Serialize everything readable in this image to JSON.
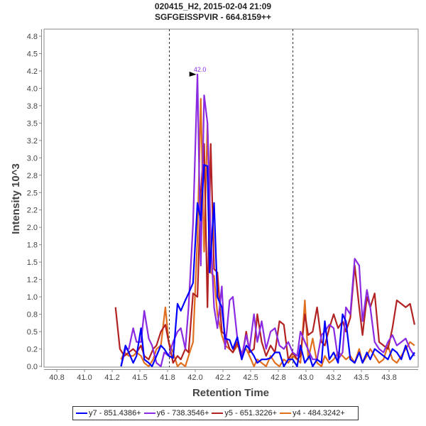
{
  "header": {
    "title_line1": "020415_H2, 2015-02-04 21:09",
    "title_line2": "SGFGEISSPVIR - 664.8159++"
  },
  "chart_data": {
    "type": "line",
    "title": "020415_H2, 2015-02-04 21:09",
    "subtitle": "SGFGEISSPVIR - 664.8159++",
    "xlabel": "Retention Time",
    "ylabel": "Intensity 10^3",
    "xlim": [
      40.7,
      44.0
    ],
    "ylim": [
      0,
      4.85
    ],
    "x_ticks": [
      40.75,
      41.0,
      41.25,
      41.5,
      41.75,
      42.0,
      42.25,
      42.5,
      42.75,
      43.0,
      43.25,
      43.5,
      43.75
    ],
    "x_tick_labels": [
      "40.8",
      "41.0",
      "41.2",
      "41.5",
      "41.8",
      "42.0",
      "42.2",
      "42.5",
      "42.8",
      "43.0",
      "43.2",
      "43.5",
      "43.8"
    ],
    "y_ticks": [
      0,
      0.25,
      0.5,
      0.75,
      1.0,
      1.25,
      1.5,
      1.75,
      2.0,
      2.25,
      2.5,
      2.75,
      3.0,
      3.25,
      3.5,
      3.75,
      4.0,
      4.25,
      4.5,
      4.75
    ],
    "y_tick_labels": [
      "0.0",
      "0.2",
      "0.5",
      "0.8",
      "1.0",
      "1.2",
      "1.5",
      "1.8",
      "2.0",
      "2.2",
      "2.5",
      "2.8",
      "3.0",
      "3.2",
      "3.5",
      "3.8",
      "4.0",
      "4.2",
      "4.5",
      "4.8"
    ],
    "grid": false,
    "legend_position": "bottom",
    "integration_bounds": [
      41.76,
      42.88
    ],
    "peak_annotation": {
      "label": "42.0",
      "x": 42.03,
      "y": 4.2,
      "color": "#8a2be2"
    },
    "series": [
      {
        "name": "y7 - 851.4386+",
        "color": "#0000ff",
        "points": [
          [
            41.33,
            0.0
          ],
          [
            41.37,
            0.3
          ],
          [
            41.4,
            0.2
          ],
          [
            41.44,
            0.05
          ],
          [
            41.47,
            0.15
          ],
          [
            41.51,
            0.55
          ],
          [
            41.54,
            0.1
          ],
          [
            41.58,
            0.05
          ],
          [
            41.61,
            0.0
          ],
          [
            41.65,
            0.15
          ],
          [
            41.69,
            0.3
          ],
          [
            41.72,
            0.25
          ],
          [
            41.76,
            0.15
          ],
          [
            41.8,
            0.12
          ],
          [
            41.84,
            0.9
          ],
          [
            41.87,
            0.8
          ],
          [
            41.91,
            0.95
          ],
          [
            41.94,
            1.05
          ],
          [
            41.98,
            1.2
          ],
          [
            42.02,
            2.35
          ],
          [
            42.05,
            2.1
          ],
          [
            42.08,
            2.9
          ],
          [
            42.11,
            2.88
          ],
          [
            42.13,
            1.35
          ],
          [
            42.17,
            2.35
          ],
          [
            42.2,
            1.0
          ],
          [
            42.24,
            0.85
          ],
          [
            42.27,
            0.4
          ],
          [
            42.31,
            0.38
          ],
          [
            42.34,
            0.25
          ],
          [
            42.38,
            0.42
          ],
          [
            42.42,
            0.1
          ],
          [
            42.46,
            0.3
          ],
          [
            42.49,
            0.25
          ],
          [
            42.53,
            0.15
          ],
          [
            42.56,
            0.05
          ],
          [
            42.6,
            0.1
          ],
          [
            42.64,
            0.1
          ],
          [
            42.68,
            0.12
          ],
          [
            42.72,
            0.2
          ],
          [
            42.76,
            0.2
          ],
          [
            42.8,
            0.0
          ],
          [
            42.84,
            0.1
          ],
          [
            42.88,
            0.1
          ],
          [
            42.92,
            0.0
          ],
          [
            42.95,
            0.3
          ],
          [
            42.99,
            0.05
          ],
          [
            43.03,
            0.15
          ],
          [
            43.06,
            0.0
          ],
          [
            43.1,
            0.1
          ],
          [
            43.14,
            0.05
          ],
          [
            43.17,
            0.65
          ],
          [
            43.21,
            0.1
          ],
          [
            43.25,
            0.2
          ],
          [
            43.29,
            0.05
          ],
          [
            43.33,
            0.75
          ],
          [
            43.36,
            0.65
          ],
          [
            43.4,
            0.1
          ],
          [
            43.44,
            0.05
          ],
          [
            43.48,
            0.2
          ],
          [
            43.51,
            0.05
          ],
          [
            43.55,
            0.2
          ],
          [
            43.58,
            0.1
          ],
          [
            43.62,
            0.25
          ],
          [
            43.66,
            0.2
          ],
          [
            43.7,
            0.15
          ],
          [
            43.74,
            0.1
          ],
          [
            43.78,
            0.25
          ],
          [
            43.82,
            0.2
          ],
          [
            43.86,
            0.1
          ],
          [
            43.9,
            0.3
          ],
          [
            43.94,
            0.1
          ],
          [
            43.98,
            0.2
          ]
        ]
      },
      {
        "name": "y6 - 738.3546+",
        "color": "#8a2be2",
        "points": [
          [
            41.33,
            0.0
          ],
          [
            41.37,
            0.25
          ],
          [
            41.4,
            0.25
          ],
          [
            41.44,
            0.55
          ],
          [
            41.47,
            0.35
          ],
          [
            41.51,
            0.35
          ],
          [
            41.54,
            0.8
          ],
          [
            41.58,
            0.4
          ],
          [
            41.61,
            0.3
          ],
          [
            41.65,
            0.05
          ],
          [
            41.69,
            0.0
          ],
          [
            41.72,
            0.2
          ],
          [
            41.76,
            0.15
          ],
          [
            41.8,
            0.35
          ],
          [
            41.84,
            0.5
          ],
          [
            41.87,
            0.55
          ],
          [
            41.91,
            0.25
          ],
          [
            41.94,
            0.85
          ],
          [
            41.98,
            2.05
          ],
          [
            42.02,
            4.2
          ],
          [
            42.05,
            1.45
          ],
          [
            42.08,
            3.9
          ],
          [
            42.11,
            3.5
          ],
          [
            42.14,
            1.9
          ],
          [
            42.17,
            0.85
          ],
          [
            42.2,
            0.55
          ],
          [
            42.24,
            1.15
          ],
          [
            42.27,
            0.25
          ],
          [
            42.31,
            0.95
          ],
          [
            42.34,
            1.0
          ],
          [
            42.38,
            0.4
          ],
          [
            42.42,
            0.15
          ],
          [
            42.46,
            0.45
          ],
          [
            42.49,
            0.25
          ],
          [
            42.53,
            0.75
          ],
          [
            42.56,
            0.35
          ],
          [
            42.6,
            0.65
          ],
          [
            42.64,
            0.25
          ],
          [
            42.68,
            0.5
          ],
          [
            42.72,
            0.55
          ],
          [
            42.76,
            0.3
          ],
          [
            42.8,
            0.25
          ],
          [
            42.84,
            0.35
          ],
          [
            42.88,
            0.2
          ],
          [
            42.92,
            0.15
          ],
          [
            42.95,
            0.5
          ],
          [
            42.99,
            0.35
          ],
          [
            43.03,
            0.2
          ],
          [
            43.06,
            0.1
          ],
          [
            43.1,
            0.1
          ],
          [
            43.14,
            0.45
          ],
          [
            43.17,
            0.5
          ],
          [
            43.21,
            0.6
          ],
          [
            43.25,
            0.55
          ],
          [
            43.29,
            0.1
          ],
          [
            43.33,
            0.2
          ],
          [
            43.36,
            0.85
          ],
          [
            43.4,
            0.75
          ],
          [
            43.44,
            1.55
          ],
          [
            43.48,
            1.45
          ],
          [
            43.51,
            0.65
          ],
          [
            43.55,
            1.1
          ],
          [
            43.58,
            0.85
          ],
          [
            43.62,
            0.35
          ],
          [
            43.66,
            0.25
          ],
          [
            43.7,
            0.2
          ],
          [
            43.74,
            0.35
          ],
          [
            43.78,
            0.45
          ],
          [
            43.82,
            0.3
          ],
          [
            43.86,
            0.35
          ],
          [
            43.9,
            0.4
          ],
          [
            43.94,
            0.25
          ],
          [
            43.98,
            0.15
          ]
        ]
      },
      {
        "name": "y5 - 651.3226+",
        "color": "#b22222",
        "points": [
          [
            41.28,
            0.85
          ],
          [
            41.32,
            0.25
          ],
          [
            41.36,
            0.15
          ],
          [
            41.4,
            0.2
          ],
          [
            41.44,
            0.25
          ],
          [
            41.47,
            0.2
          ],
          [
            41.51,
            0.3
          ],
          [
            41.54,
            0.15
          ],
          [
            41.58,
            0.1
          ],
          [
            41.62,
            0.25
          ],
          [
            41.65,
            0.3
          ],
          [
            41.69,
            0.5
          ],
          [
            41.73,
            0.6
          ],
          [
            41.76,
            0.35
          ],
          [
            41.8,
            0.05
          ],
          [
            41.84,
            0.15
          ],
          [
            41.87,
            0.1
          ],
          [
            41.91,
            0.25
          ],
          [
            41.94,
            0.2
          ],
          [
            41.98,
            1.05
          ],
          [
            42.02,
            1.0
          ],
          [
            42.05,
            2.5
          ],
          [
            42.08,
            3.2
          ],
          [
            42.11,
            0.85
          ],
          [
            42.14,
            3.2
          ],
          [
            42.17,
            1.4
          ],
          [
            42.2,
            1.35
          ],
          [
            42.24,
            0.5
          ],
          [
            42.27,
            0.45
          ],
          [
            42.31,
            0.25
          ],
          [
            42.34,
            0.2
          ],
          [
            42.38,
            0.35
          ],
          [
            42.42,
            0.1
          ],
          [
            42.46,
            0.5
          ],
          [
            42.49,
            0.2
          ],
          [
            42.53,
            0.25
          ],
          [
            42.56,
            0.75
          ],
          [
            42.6,
            0.35
          ],
          [
            42.64,
            0.15
          ],
          [
            42.68,
            0.3
          ],
          [
            42.72,
            0.2
          ],
          [
            42.76,
            0.65
          ],
          [
            42.8,
            0.6
          ],
          [
            42.84,
            0.1
          ],
          [
            42.88,
            0.2
          ],
          [
            42.92,
            0.1
          ],
          [
            42.95,
            0.15
          ],
          [
            42.99,
            0.75
          ],
          [
            43.02,
            0.45
          ],
          [
            43.06,
            0.5
          ],
          [
            43.1,
            0.85
          ],
          [
            43.14,
            0.35
          ],
          [
            43.17,
            0.3
          ],
          [
            43.21,
            0.55
          ],
          [
            43.25,
            0.75
          ],
          [
            43.29,
            0.55
          ],
          [
            43.33,
            0.65
          ],
          [
            43.36,
            0.5
          ],
          [
            43.4,
            0.7
          ],
          [
            43.44,
            1.45
          ],
          [
            43.48,
            0.85
          ],
          [
            43.51,
            0.45
          ],
          [
            43.55,
            1.0
          ],
          [
            43.58,
            0.85
          ],
          [
            43.62,
            1.05
          ],
          [
            43.66,
            0.35
          ],
          [
            43.7,
            0.3
          ],
          [
            43.74,
            0.25
          ],
          [
            43.78,
            0.55
          ],
          [
            43.82,
            0.95
          ],
          [
            43.86,
            0.9
          ],
          [
            43.9,
            0.85
          ],
          [
            43.94,
            0.9
          ],
          [
            43.98,
            0.6
          ]
        ]
      },
      {
        "name": "y4 - 484.3242+",
        "color": "#e07020",
        "points": [
          [
            41.33,
            0.1
          ],
          [
            41.36,
            0.2
          ],
          [
            41.4,
            0.15
          ],
          [
            41.44,
            0.15
          ],
          [
            41.47,
            0.2
          ],
          [
            41.51,
            0.15
          ],
          [
            41.54,
            0.05
          ],
          [
            41.58,
            0.0
          ],
          [
            41.62,
            0.1
          ],
          [
            41.65,
            0.25
          ],
          [
            41.69,
            0.3
          ],
          [
            41.73,
            0.85
          ],
          [
            41.76,
            0.35
          ],
          [
            41.8,
            0.2
          ],
          [
            41.84,
            0.0
          ],
          [
            41.87,
            0.05
          ],
          [
            41.91,
            0.0
          ],
          [
            41.94,
            0.15
          ],
          [
            41.98,
            0.35
          ],
          [
            42.02,
            1.85
          ],
          [
            42.05,
            3.85
          ],
          [
            42.08,
            1.65
          ],
          [
            42.11,
            3.5
          ],
          [
            42.14,
            1.35
          ],
          [
            42.17,
            1.3
          ],
          [
            42.2,
            0.75
          ],
          [
            42.24,
            0.45
          ],
          [
            42.27,
            0.3
          ],
          [
            42.31,
            0.25
          ],
          [
            42.34,
            0.2
          ],
          [
            42.38,
            0.3
          ],
          [
            42.42,
            0.2
          ],
          [
            42.46,
            0.25
          ],
          [
            42.49,
            0.15
          ],
          [
            42.53,
            0.0
          ],
          [
            42.56,
            0.1
          ],
          [
            42.6,
            0.05
          ],
          [
            42.64,
            0.0
          ],
          [
            42.68,
            0.15
          ],
          [
            42.72,
            0.05
          ],
          [
            42.76,
            0.0
          ],
          [
            42.8,
            0.1
          ],
          [
            42.84,
            0.05
          ],
          [
            42.88,
            0.15
          ],
          [
            42.92,
            0.1
          ],
          [
            42.95,
            0.05
          ],
          [
            42.99,
            0.95
          ],
          [
            43.02,
            0.1
          ],
          [
            43.06,
            0.4
          ],
          [
            43.1,
            0.05
          ],
          [
            43.14,
            0.0
          ],
          [
            43.17,
            0.15
          ],
          [
            43.21,
            0.05
          ],
          [
            43.25,
            0.1
          ],
          [
            43.29,
            0.2
          ],
          [
            43.33,
            0.15
          ],
          [
            43.36,
            0.1
          ],
          [
            43.4,
            0.15
          ],
          [
            43.44,
            0.05
          ],
          [
            43.48,
            0.25
          ],
          [
            43.51,
            0.05
          ],
          [
            43.55,
            0.15
          ],
          [
            43.58,
            0.25
          ],
          [
            43.62,
            0.15
          ],
          [
            43.66,
            0.05
          ],
          [
            43.7,
            0.1
          ],
          [
            43.74,
            0.3
          ],
          [
            43.78,
            0.1
          ],
          [
            43.82,
            0.05
          ],
          [
            43.86,
            0.15
          ],
          [
            43.9,
            0.25
          ],
          [
            43.94,
            0.35
          ],
          [
            43.98,
            0.3
          ]
        ]
      }
    ]
  }
}
